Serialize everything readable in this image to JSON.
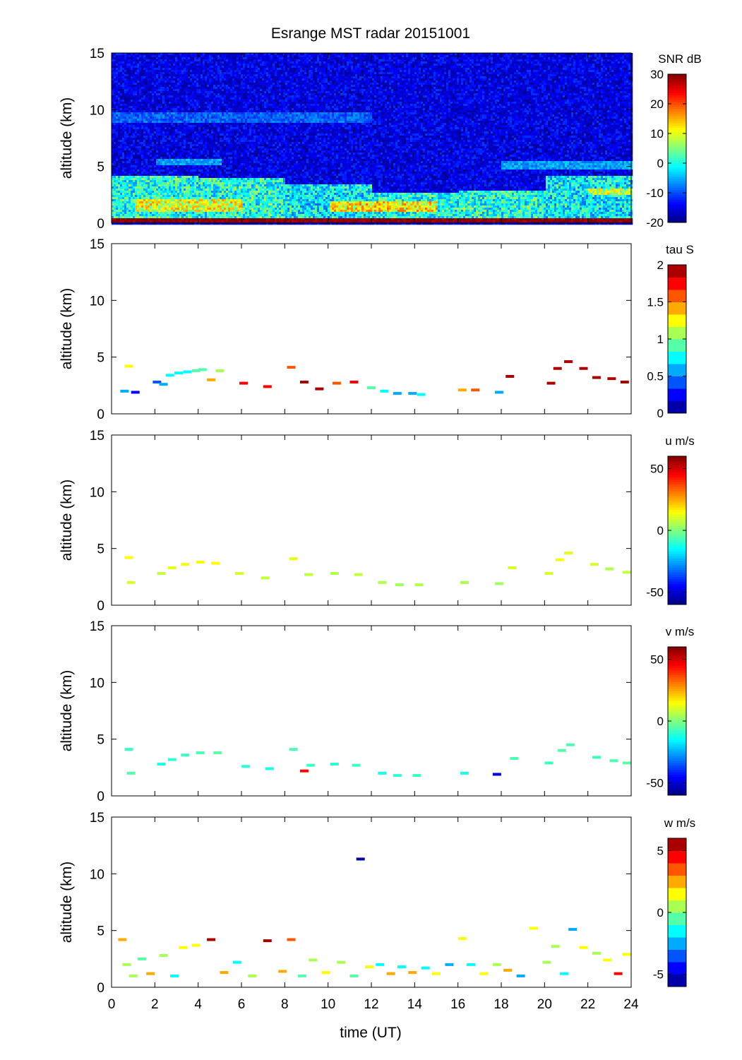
{
  "chart_data": [
    {
      "type": "heatmap",
      "title": "Esrange MST radar 20151001",
      "quantity": "SNR dB",
      "ylabel": "altitude (km)",
      "xlim": [
        0,
        24
      ],
      "ylim": [
        0,
        15
      ],
      "clim": [
        -20,
        30
      ],
      "colormap": "jet",
      "colormap_levels": "continuous",
      "cb_ticks": [
        -20,
        -10,
        0,
        10,
        20,
        30
      ],
      "cb_tick_labels": [
        "-20",
        "-10",
        "0",
        "10",
        "20",
        "30"
      ],
      "background_value": -15,
      "bands": [
        {
          "t0": 0,
          "t1": 4,
          "z0": 0.5,
          "z1": 4.3,
          "value": 0
        },
        {
          "t0": 4,
          "t1": 8,
          "z0": 0.5,
          "z1": 4.0,
          "value": 0
        },
        {
          "t0": 8,
          "t1": 12,
          "z0": 0.5,
          "z1": 3.6,
          "value": -2
        },
        {
          "t0": 12,
          "t1": 16,
          "z0": 0.5,
          "z1": 2.8,
          "value": 0
        },
        {
          "t0": 16,
          "t1": 20,
          "z0": 0.5,
          "z1": 3.0,
          "value": 0
        },
        {
          "t0": 20,
          "t1": 24,
          "z0": 0.5,
          "z1": 4.2,
          "value": -2
        },
        {
          "t0": 1,
          "t1": 6,
          "z0": 1.0,
          "z1": 2.2,
          "value": 10
        },
        {
          "t0": 10,
          "t1": 15,
          "z0": 1.0,
          "z1": 2.0,
          "value": 12
        },
        {
          "t0": 22,
          "t1": 24,
          "z0": 2.5,
          "z1": 3.2,
          "value": 8
        }
      ],
      "layers": [
        {
          "t0": 2,
          "t1": 5,
          "z0": 5.2,
          "z1": 5.8,
          "value": -6
        },
        {
          "t0": 18,
          "t1": 24,
          "z0": 4.8,
          "z1": 5.6,
          "value": -6
        },
        {
          "t0": 0,
          "t1": 12,
          "z0": 9.0,
          "z1": 9.8,
          "value": -9
        },
        {
          "t0": 0,
          "t1": 24,
          "z0": 0.2,
          "z1": 0.45,
          "value": 30
        }
      ]
    },
    {
      "type": "scatter",
      "quantity": "tau S",
      "ylabel": "altitude (km)",
      "xlim": [
        0,
        24
      ],
      "ylim": [
        0,
        15
      ],
      "clim": [
        0,
        2
      ],
      "colormap": "jet",
      "colormap_levels": 12,
      "cb_ticks": [
        0,
        0.5,
        1,
        1.5,
        2
      ],
      "cb_tick_labels": [
        "0",
        "0.5",
        "1",
        "1.5",
        "2"
      ],
      "points": [
        [
          0.6,
          2.0,
          0.65
        ],
        [
          0.8,
          4.2,
          1.3
        ],
        [
          1.1,
          1.9,
          0.3
        ],
        [
          2.1,
          2.8,
          0.4
        ],
        [
          2.4,
          2.6,
          0.5
        ],
        [
          2.7,
          3.4,
          0.7
        ],
        [
          3.1,
          3.6,
          0.75
        ],
        [
          3.5,
          3.7,
          0.8
        ],
        [
          3.9,
          3.8,
          0.9
        ],
        [
          4.2,
          3.9,
          0.95
        ],
        [
          4.6,
          3.0,
          1.4
        ],
        [
          5.0,
          3.8,
          1.0
        ],
        [
          6.1,
          2.7,
          1.7
        ],
        [
          7.2,
          2.4,
          1.8
        ],
        [
          8.3,
          4.1,
          1.6
        ],
        [
          8.9,
          2.8,
          1.9
        ],
        [
          9.6,
          2.2,
          1.85
        ],
        [
          10.4,
          2.7,
          1.5
        ],
        [
          11.2,
          2.8,
          1.7
        ],
        [
          12.0,
          2.3,
          0.9
        ],
        [
          12.6,
          2.0,
          0.7
        ],
        [
          13.2,
          1.8,
          0.55
        ],
        [
          13.9,
          1.8,
          0.6
        ],
        [
          14.3,
          1.7,
          0.75
        ],
        [
          16.2,
          2.1,
          1.4
        ],
        [
          16.8,
          2.1,
          1.5
        ],
        [
          17.9,
          1.9,
          0.6
        ],
        [
          18.4,
          3.3,
          1.95
        ],
        [
          20.3,
          2.7,
          1.95
        ],
        [
          20.6,
          4.0,
          2.0
        ],
        [
          21.1,
          4.6,
          1.9
        ],
        [
          21.8,
          4.0,
          1.95
        ],
        [
          22.4,
          3.2,
          2.0
        ],
        [
          23.1,
          3.1,
          1.95
        ],
        [
          23.7,
          2.8,
          2.0
        ]
      ]
    },
    {
      "type": "scatter",
      "quantity": "u m/s",
      "ylabel": "altitude (km)",
      "xlim": [
        0,
        24
      ],
      "ylim": [
        0,
        15
      ],
      "clim": [
        -60,
        60
      ],
      "colormap": "jet",
      "colormap_levels": "continuous",
      "cb_ticks": [
        -50,
        0,
        50
      ],
      "cb_tick_labels": [
        "-50",
        "0",
        "50"
      ],
      "points": [
        [
          0.8,
          4.2,
          15
        ],
        [
          0.9,
          2.0,
          10
        ],
        [
          2.3,
          2.8,
          8
        ],
        [
          2.8,
          3.3,
          12
        ],
        [
          3.4,
          3.6,
          14
        ],
        [
          4.1,
          3.8,
          16
        ],
        [
          4.8,
          3.7,
          15
        ],
        [
          5.9,
          2.8,
          10
        ],
        [
          7.1,
          2.4,
          8
        ],
        [
          8.4,
          4.1,
          12
        ],
        [
          9.1,
          2.7,
          8
        ],
        [
          10.3,
          2.8,
          6
        ],
        [
          11.4,
          2.7,
          8
        ],
        [
          12.5,
          2.0,
          6
        ],
        [
          13.3,
          1.8,
          4
        ],
        [
          14.2,
          1.8,
          6
        ],
        [
          16.3,
          2.0,
          5
        ],
        [
          17.9,
          1.9,
          4
        ],
        [
          18.5,
          3.3,
          10
        ],
        [
          20.2,
          2.8,
          10
        ],
        [
          20.7,
          4.0,
          14
        ],
        [
          21.1,
          4.6,
          12
        ],
        [
          22.3,
          3.6,
          10
        ],
        [
          23.0,
          3.2,
          6
        ],
        [
          23.8,
          2.9,
          8
        ]
      ]
    },
    {
      "type": "scatter",
      "quantity": "v m/s",
      "ylabel": "altitude (km)",
      "xlim": [
        0,
        24
      ],
      "ylim": [
        0,
        15
      ],
      "clim": [
        -60,
        60
      ],
      "colormap": "jet",
      "colormap_levels": "continuous",
      "cb_ticks": [
        -50,
        0,
        50
      ],
      "cb_tick_labels": [
        "-50",
        "0",
        "50"
      ],
      "points": [
        [
          0.8,
          4.1,
          -8
        ],
        [
          0.9,
          2.0,
          -5
        ],
        [
          2.3,
          2.8,
          -12
        ],
        [
          2.8,
          3.2,
          -10
        ],
        [
          3.4,
          3.6,
          -8
        ],
        [
          4.1,
          3.8,
          -6
        ],
        [
          4.9,
          3.8,
          -4
        ],
        [
          6.2,
          2.6,
          -10
        ],
        [
          7.3,
          2.4,
          -12
        ],
        [
          8.4,
          4.1,
          -6
        ],
        [
          8.9,
          2.2,
          45
        ],
        [
          9.2,
          2.7,
          -8
        ],
        [
          10.3,
          2.8,
          -10
        ],
        [
          11.3,
          2.7,
          -8
        ],
        [
          12.5,
          2.0,
          -12
        ],
        [
          13.2,
          1.8,
          -10
        ],
        [
          14.1,
          1.8,
          -8
        ],
        [
          16.3,
          2.0,
          -12
        ],
        [
          17.8,
          1.9,
          -50
        ],
        [
          18.6,
          3.3,
          -6
        ],
        [
          20.2,
          2.9,
          -8
        ],
        [
          20.8,
          4.0,
          -5
        ],
        [
          21.2,
          4.5,
          -6
        ],
        [
          22.4,
          3.4,
          -8
        ],
        [
          23.2,
          3.1,
          -6
        ],
        [
          23.8,
          2.9,
          -4
        ]
      ]
    },
    {
      "type": "scatter",
      "quantity": "w m/s",
      "ylabel": "altitude (km)",
      "xlabel": "time (UT)",
      "xlim": [
        0,
        24
      ],
      "ylim": [
        0,
        15
      ],
      "clim": [
        -6,
        6
      ],
      "colormap": "jet",
      "colormap_levels": 12,
      "cb_ticks": [
        -5,
        0,
        5
      ],
      "cb_tick_labels": [
        "-5",
        "0",
        "5"
      ],
      "x_ticks": [
        0,
        2,
        4,
        6,
        8,
        10,
        12,
        14,
        16,
        18,
        20,
        22,
        24
      ],
      "x_tick_labels": [
        "0",
        "2",
        "4",
        "6",
        "8",
        "10",
        "12",
        "14",
        "16",
        "18",
        "20",
        "22",
        "24"
      ],
      "points": [
        [
          0.5,
          4.2,
          2.5
        ],
        [
          0.7,
          2.0,
          0.5
        ],
        [
          1.0,
          1.0,
          0.8
        ],
        [
          1.4,
          2.5,
          -0.5
        ],
        [
          1.8,
          1.2,
          2.2
        ],
        [
          2.4,
          2.8,
          0.5
        ],
        [
          2.9,
          1.0,
          -1.5
        ],
        [
          3.3,
          3.5,
          1.5
        ],
        [
          3.9,
          3.7,
          1.8
        ],
        [
          4.6,
          4.2,
          5.5
        ],
        [
          5.2,
          1.3,
          2.0
        ],
        [
          5.8,
          2.2,
          -1.2
        ],
        [
          6.5,
          1.0,
          0.5
        ],
        [
          7.2,
          4.1,
          5.0
        ],
        [
          7.9,
          1.4,
          2.8
        ],
        [
          8.3,
          4.2,
          3.5
        ],
        [
          8.8,
          1.0,
          -0.8
        ],
        [
          9.3,
          2.4,
          0.2
        ],
        [
          9.9,
          1.3,
          1.5
        ],
        [
          10.6,
          2.2,
          0.8
        ],
        [
          11.2,
          1.0,
          -1.0
        ],
        [
          11.5,
          11.3,
          -5.8
        ],
        [
          11.9,
          1.8,
          1.0
        ],
        [
          12.4,
          2.0,
          -1.5
        ],
        [
          12.9,
          1.2,
          2.0
        ],
        [
          13.4,
          1.8,
          -2.0
        ],
        [
          13.9,
          1.3,
          2.4
        ],
        [
          14.5,
          1.7,
          -1.8
        ],
        [
          15.0,
          1.2,
          1.5
        ],
        [
          15.6,
          2.0,
          -2.2
        ],
        [
          16.2,
          4.3,
          1.0
        ],
        [
          16.6,
          2.0,
          -1.5
        ],
        [
          17.2,
          1.2,
          1.8
        ],
        [
          17.8,
          2.0,
          0.5
        ],
        [
          18.3,
          1.5,
          2.5
        ],
        [
          18.9,
          1.0,
          -2.5
        ],
        [
          19.5,
          5.2,
          1.2
        ],
        [
          20.1,
          2.2,
          0.0
        ],
        [
          20.5,
          3.6,
          0.8
        ],
        [
          20.9,
          1.2,
          -1.5
        ],
        [
          21.3,
          5.1,
          -3.0
        ],
        [
          21.8,
          3.5,
          1.5
        ],
        [
          22.4,
          3.0,
          0.5
        ],
        [
          22.9,
          2.4,
          1.8
        ],
        [
          23.4,
          1.2,
          4.5
        ],
        [
          23.8,
          2.9,
          1.0
        ]
      ]
    }
  ]
}
